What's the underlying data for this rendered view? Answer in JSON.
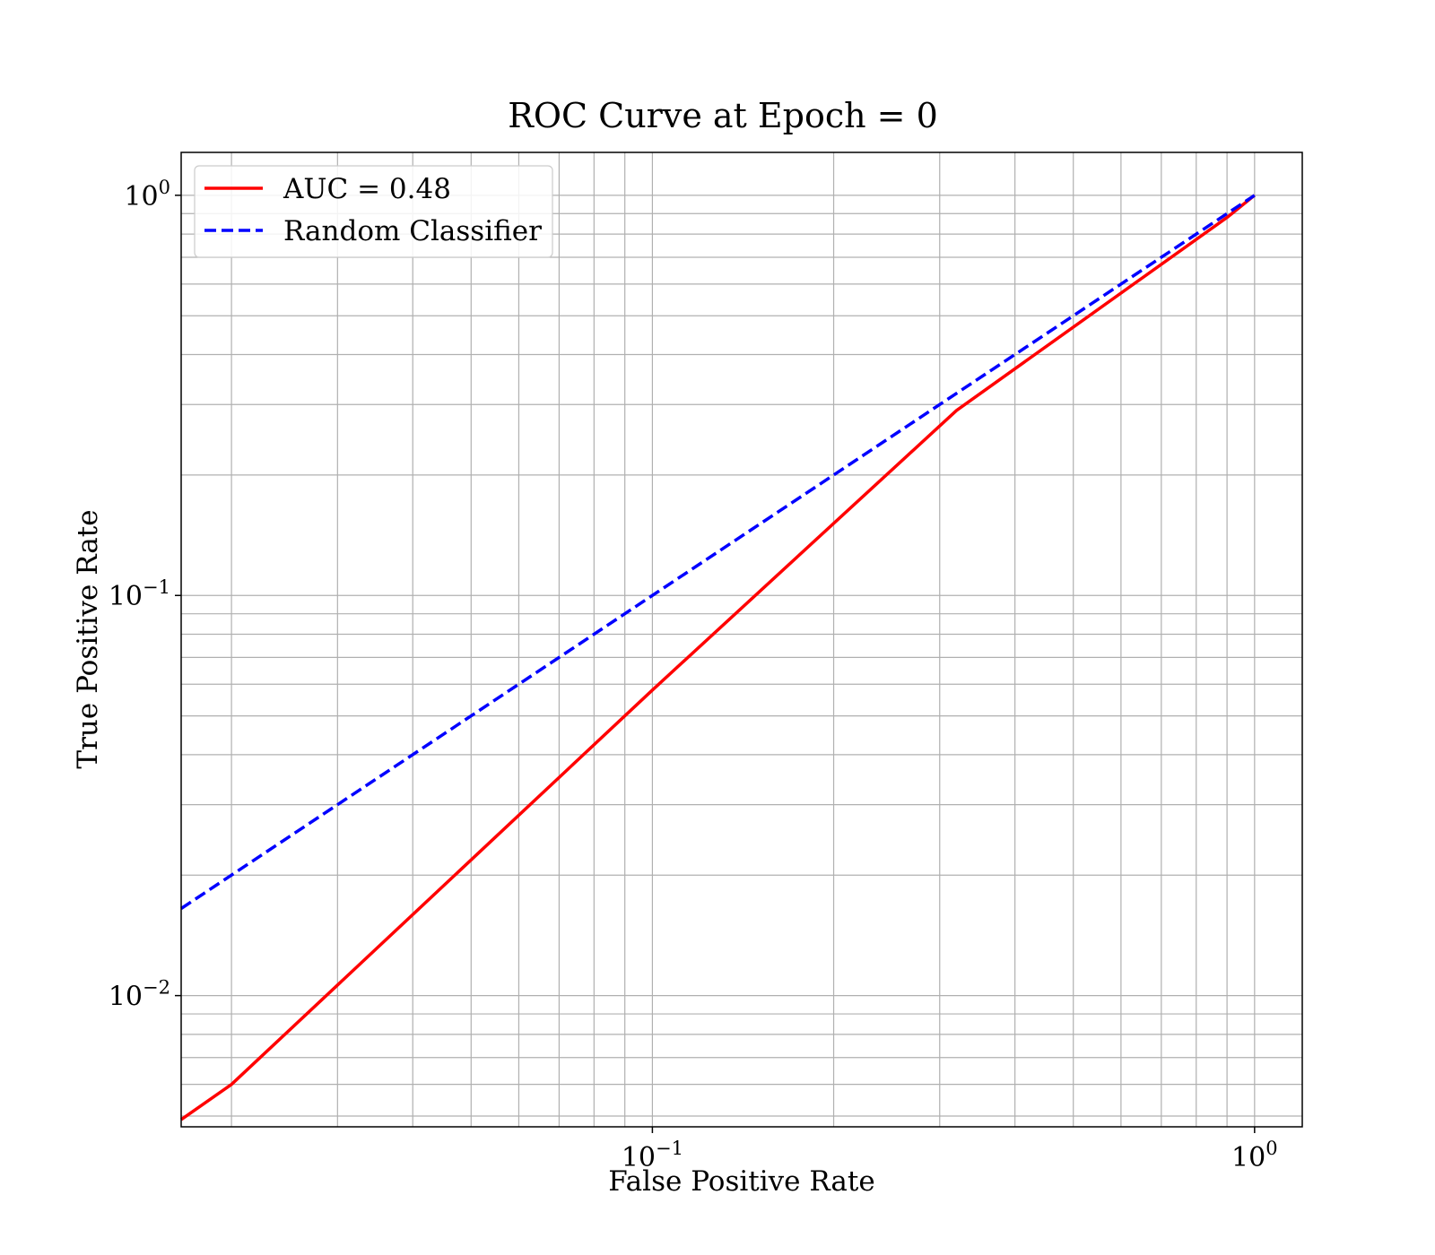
{
  "chart_data": {
    "type": "line",
    "title": "ROC Curve at Epoch = 0",
    "xlabel": "False Positive Rate",
    "ylabel": "True Positive Rate",
    "xscale": "log",
    "yscale": "log",
    "xlim": [
      0.0165,
      1.2
    ],
    "ylim": [
      0.0047,
      1.28
    ],
    "grid": "on (major and minor)",
    "legend_position": "upper-left",
    "x_ticks": [
      {
        "value": 0.1,
        "base": "10",
        "exp": "−1"
      },
      {
        "value": 1,
        "base": "10",
        "exp": "0"
      }
    ],
    "y_ticks": [
      {
        "value": 0.01,
        "base": "10",
        "exp": "−2"
      },
      {
        "value": 0.1,
        "base": "10",
        "exp": "−1"
      },
      {
        "value": 1,
        "base": "10",
        "exp": "0"
      }
    ],
    "series": [
      {
        "name": "AUC = 0.48",
        "color": "#ff0000",
        "style": "solid",
        "x": [
          0.0165,
          0.02,
          0.1,
          0.32,
          0.9,
          1.0
        ],
        "y": [
          0.0049,
          0.006,
          0.058,
          0.29,
          0.88,
          1.0
        ]
      },
      {
        "name": "Random Classifier",
        "color": "#0000ff",
        "style": "dashed",
        "x": [
          0.0165,
          1.0
        ],
        "y": [
          0.0165,
          1.0
        ]
      }
    ]
  }
}
